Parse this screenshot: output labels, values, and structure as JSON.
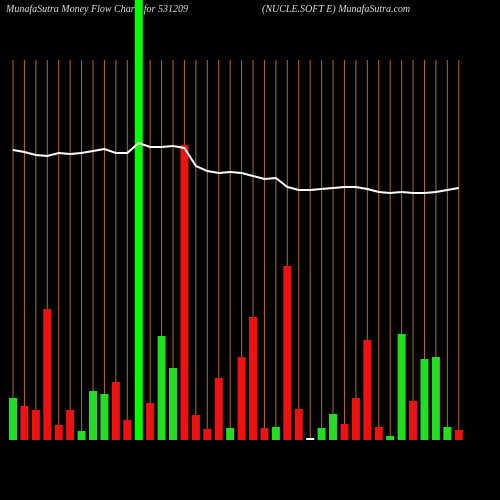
{
  "chart_data": {
    "type": "bar",
    "title": "MunafaSutra  Money Flow  Charts for 531209",
    "subtitle": "(NUCLE.SOFT E) MunafaSutra.com",
    "categories": [
      null,
      null,
      null,
      null,
      null,
      null,
      null,
      null,
      null,
      null,
      null,
      null,
      null,
      null,
      null,
      null,
      null,
      null,
      null,
      null,
      null,
      null,
      null,
      null,
      null,
      null,
      null,
      null,
      null,
      null,
      null,
      null,
      null,
      null,
      null,
      null,
      null,
      null,
      null,
      null
    ],
    "series": [
      {
        "values": [
          42,
          34,
          30,
          131,
          15,
          30,
          9,
          49,
          46,
          58,
          20,
          440,
          37,
          104,
          72,
          295,
          25,
          11,
          62,
          12,
          83,
          123,
          12,
          13,
          174,
          31,
          2,
          12,
          26,
          16,
          42,
          100,
          13,
          4,
          106,
          39,
          81,
          83,
          13,
          10
        ],
        "colors": [
          "#22dd22",
          "#ee1111",
          "#ee1111",
          "#ee1111",
          "#ee1111",
          "#ee1111",
          "#22dd22",
          "#22dd22",
          "#22dd22",
          "#ee1111",
          "#ee1111",
          "#00ff00",
          "#ee1111",
          "#22dd22",
          "#22dd22",
          "#ee1111",
          "#ee1111",
          "#ee1111",
          "#ee1111",
          "#22dd22",
          "#ee1111",
          "#ee1111",
          "#ee1111",
          "#22dd22",
          "#ee1111",
          "#ee1111",
          "#ffffff",
          "#22dd22",
          "#22dd22",
          "#ee1111",
          "#ee1111",
          "#ee1111",
          "#ee1111",
          "#22dd22",
          "#22dd22",
          "#ee1111",
          "#22dd22",
          "#22dd22",
          "#22dd22",
          "#ee1111"
        ]
      },
      {
        "type": "line",
        "color": "#ffffff",
        "values": [
          290,
          288,
          285,
          284,
          287,
          286,
          287,
          289,
          291,
          287,
          287,
          297,
          293,
          293,
          294,
          292,
          274,
          269,
          267,
          268,
          267,
          264,
          261,
          262,
          253,
          250,
          250,
          251,
          252,
          253,
          253,
          251,
          248,
          247,
          248,
          247,
          247,
          248,
          250,
          252
        ]
      }
    ],
    "ylim": [
      0,
      440
    ],
    "grid": true,
    "grid_color": "#b86a10",
    "background": "#000000"
  }
}
